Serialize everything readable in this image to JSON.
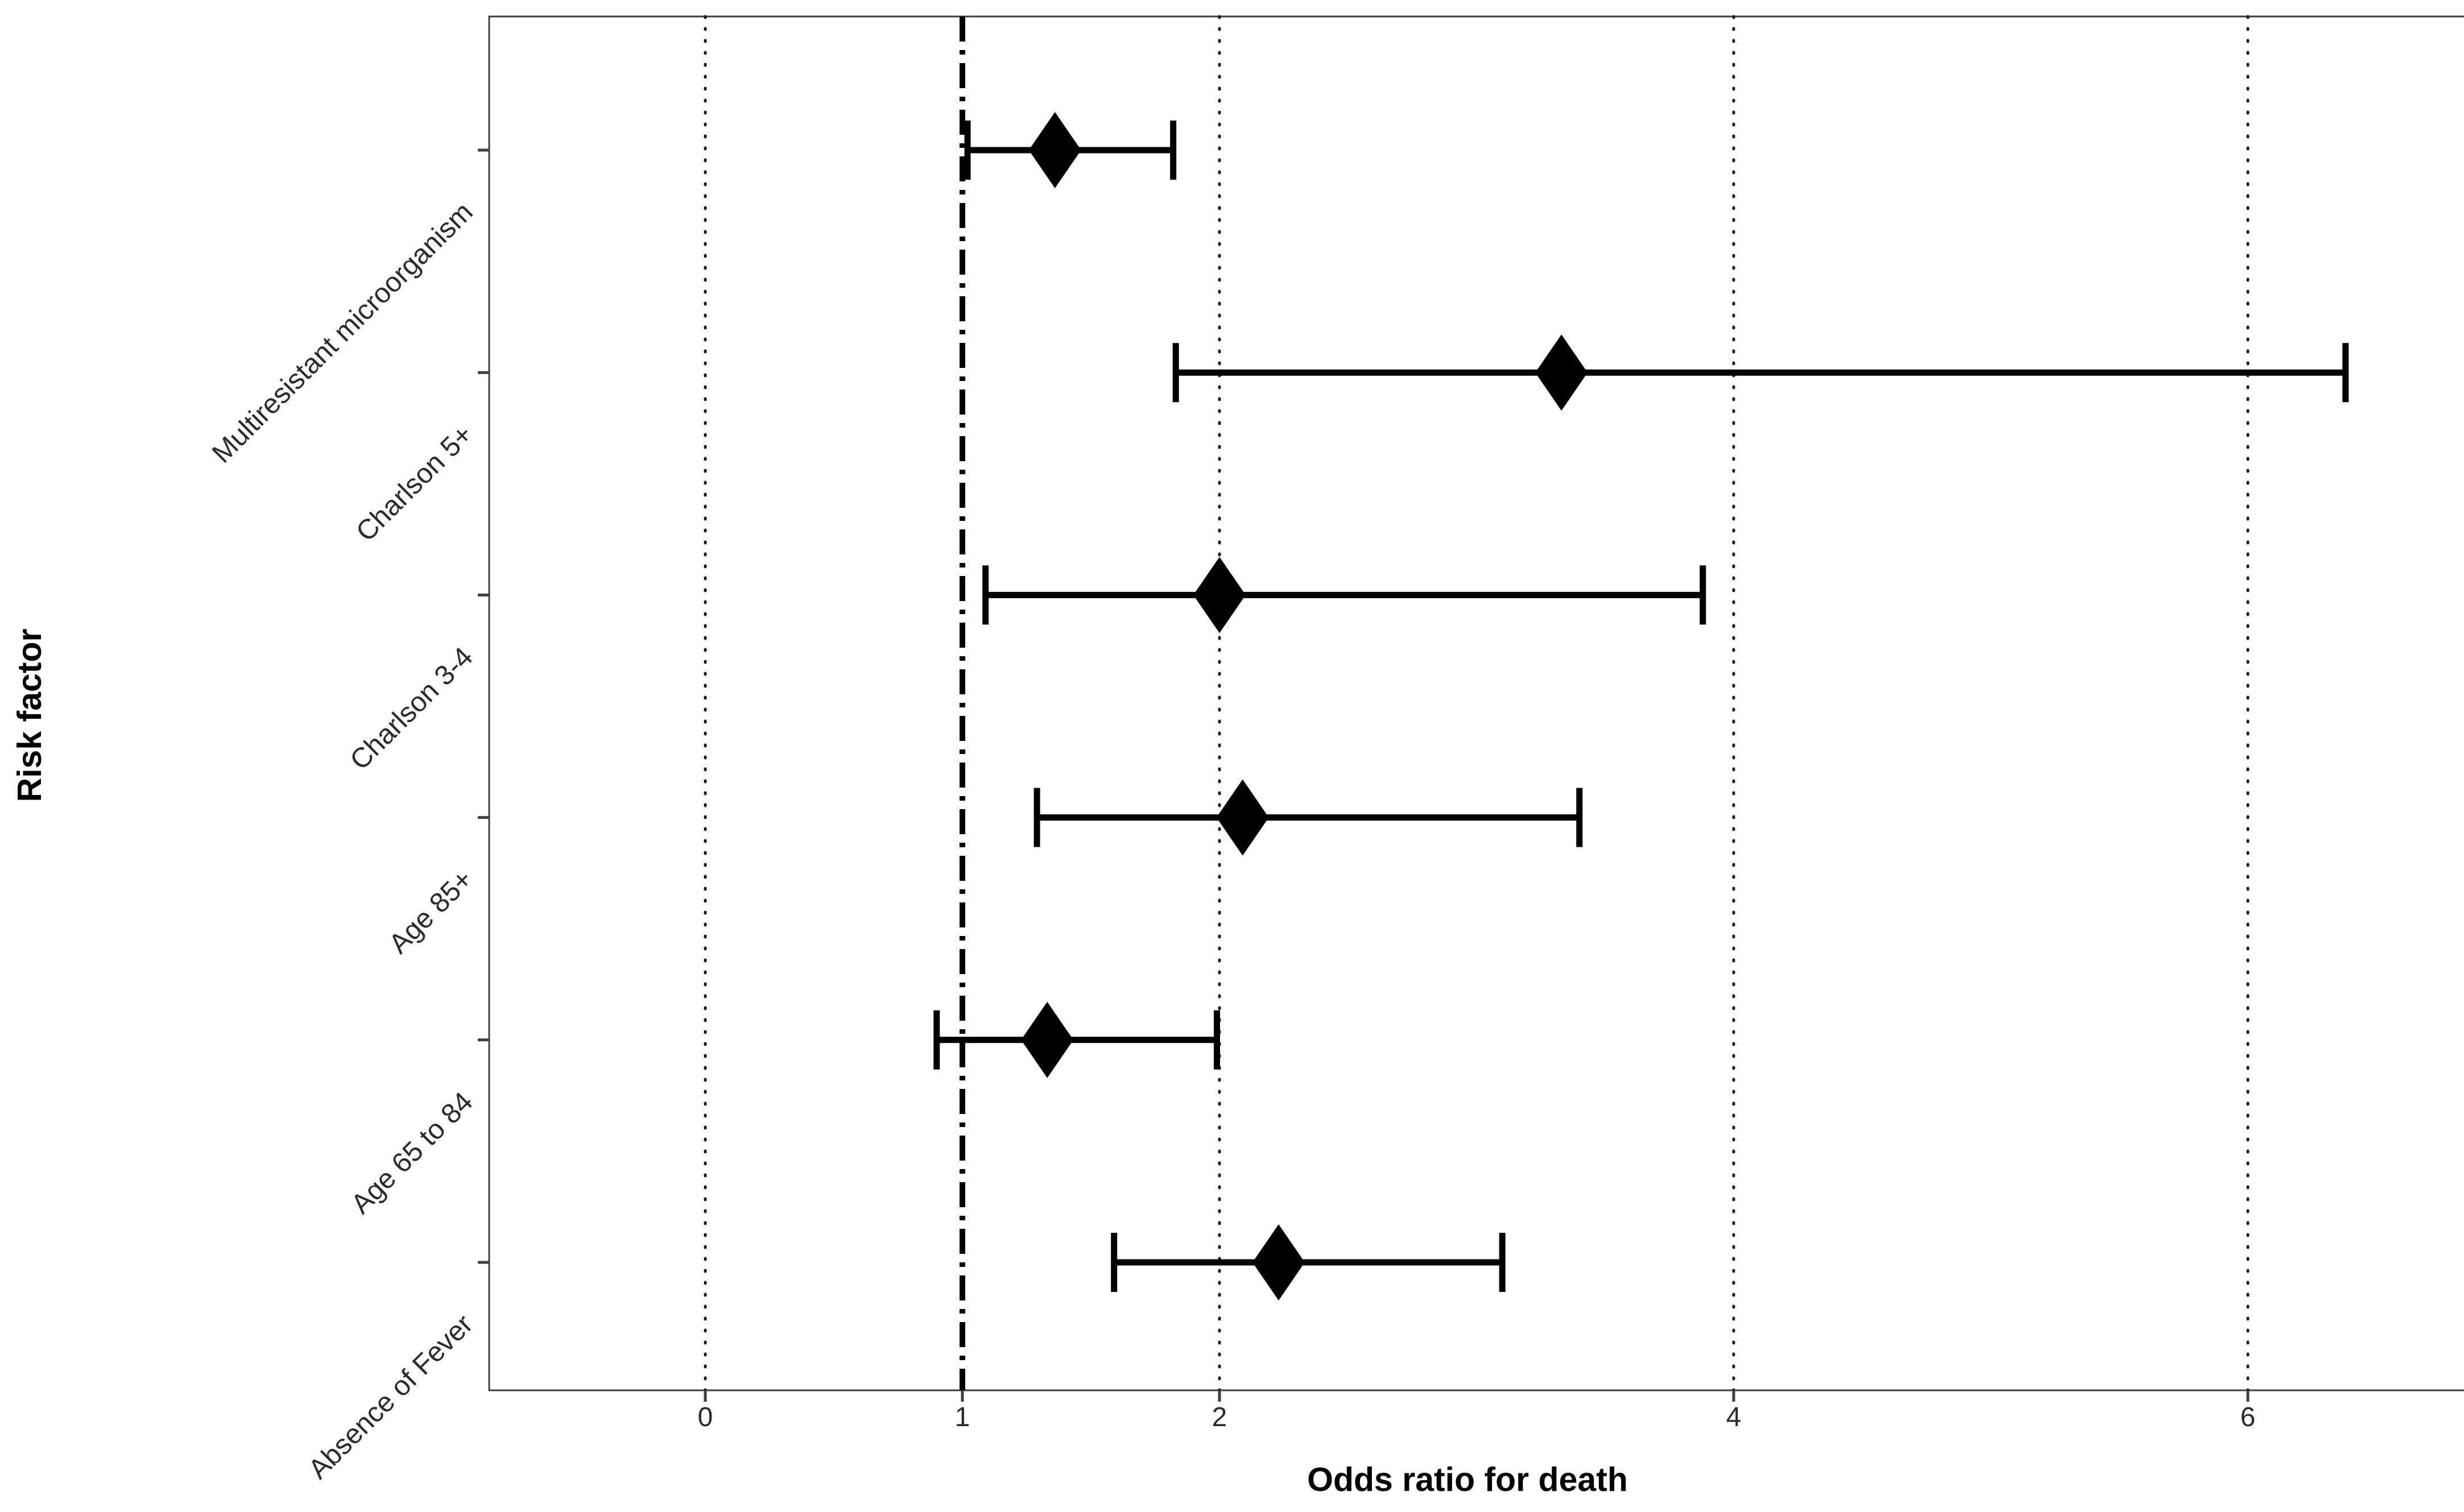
{
  "figure": {
    "background_color": "#ffffff",
    "text_color": "#2b2b2b",
    "axis_color": "#3f3f3f",
    "marker_color": "#000000"
  },
  "chart_data": {
    "type": "scatter",
    "subtype": "forest-plot",
    "title": "",
    "xlabel": "Odds ratio for death",
    "ylabel": "Risk factor",
    "x_ticks": [
      0,
      1,
      2,
      4,
      6
    ],
    "x_tick_labels": [
      "0",
      "1",
      "2",
      "4",
      "6"
    ],
    "xlim": [
      -0.85,
      6.77
    ],
    "grid": {
      "dotted_vlines": [
        0,
        2,
        4,
        6
      ],
      "dotted_style": "dotted",
      "reference_vline": 1,
      "reference_style": "dash-dot-bold"
    },
    "legend": "none",
    "marker": "diamond",
    "rows": [
      {
        "label": "Multiresistant microorganism",
        "or": 1.36,
        "ci_low": 1.02,
        "ci_high": 1.82
      },
      {
        "label": "Charlson 5+",
        "or": 3.33,
        "ci_low": 1.83,
        "ci_high": 6.38
      },
      {
        "label": "Charlson 3-4",
        "or": 2.0,
        "ci_low": 1.09,
        "ci_high": 3.88
      },
      {
        "label": "Age 85+",
        "or": 2.09,
        "ci_low": 1.29,
        "ci_high": 3.4
      },
      {
        "label": "Age 65 to 84",
        "or": 1.33,
        "ci_low": 0.9,
        "ci_high": 1.99
      },
      {
        "label": "Absence of Fever",
        "or": 2.23,
        "ci_low": 1.59,
        "ci_high": 3.1
      }
    ]
  }
}
